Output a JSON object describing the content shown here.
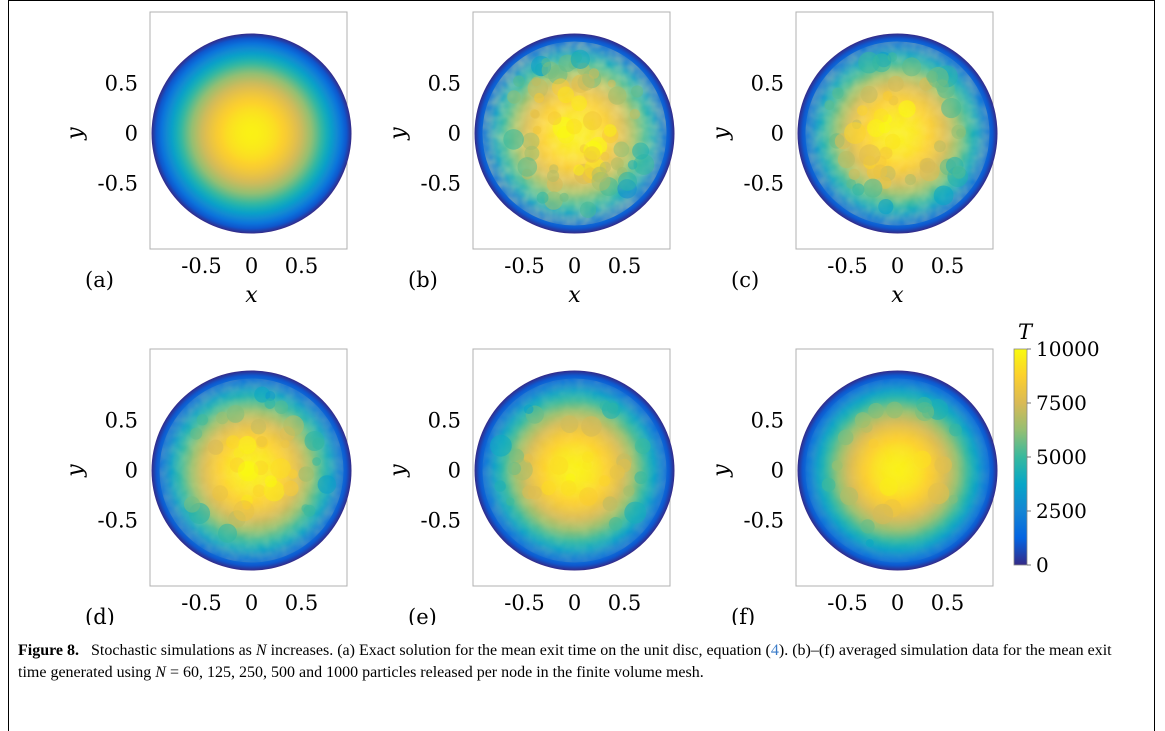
{
  "figure": {
    "panels": [
      {
        "label": "(a)",
        "style": "exact"
      },
      {
        "label": "(b)",
        "style": "noisy",
        "noise": 0.24
      },
      {
        "label": "(c)",
        "style": "noisy",
        "noise": 0.18
      },
      {
        "label": "(d)",
        "style": "noisy",
        "noise": 0.13
      },
      {
        "label": "(e)",
        "style": "noisy",
        "noise": 0.09
      },
      {
        "label": "(f)",
        "style": "noisy",
        "noise": 0.05
      }
    ],
    "axis": {
      "xlabel": "x",
      "ylabel": "y",
      "xticks": [
        "-0.5",
        "0",
        "0.5"
      ],
      "yticks": [
        "0.5",
        "0",
        "-0.5"
      ]
    },
    "colorbar": {
      "title": "T",
      "ticks": [
        "10000",
        "7500",
        "5000",
        "2500",
        "0"
      ],
      "range": [
        0,
        10000
      ],
      "colormap": "parula"
    }
  },
  "caption": {
    "figure_label": "Figure 8.",
    "text_1": "Stochastic simulations as ",
    "var_n": "N",
    "text_2": " increases. (a) Exact solution for the mean exit time on the unit disc, equation (",
    "eq_ref": "4",
    "text_3": "). (b)–(f) averaged simulation data for the mean exit time generated using ",
    "var_n2": "N",
    "text_4": " = 60, 125, 250, 500 and 1000 particles released per node in the finite volume mesh."
  },
  "chart_data": {
    "type": "heatmap",
    "description_values": {
      "colorbar_min": 0,
      "colorbar_max": 10000,
      "N_values": [
        60,
        125,
        250,
        500,
        1000
      ]
    },
    "xlim": [
      -1,
      1
    ],
    "ylim": [
      -1,
      1
    ]
  }
}
